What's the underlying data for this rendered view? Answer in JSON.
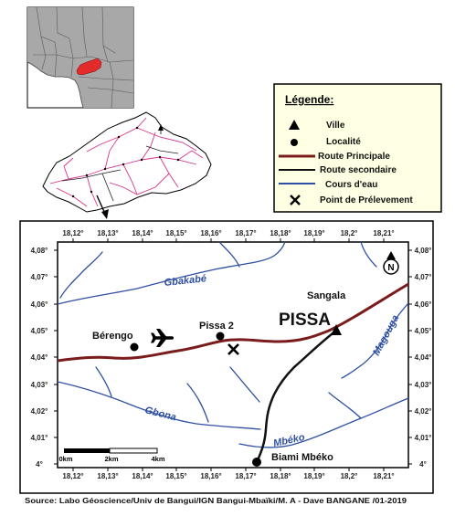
{
  "colors": {
    "main_road": "#7b1c1c",
    "secondary_road": "#111111",
    "river": "#2e4fa3",
    "car_highlight": "#e32b2b",
    "legend_bg": "#ffffe3",
    "land": "#a8a8a8",
    "car_roads": "#d6338a"
  },
  "icons": {
    "airport": "airplane-icon",
    "north": "north-arrow-icon"
  },
  "legend": {
    "title": "Légende:",
    "items": [
      {
        "symbol": "triangle",
        "label": "Ville"
      },
      {
        "symbol": "dot",
        "label": "Localité"
      },
      {
        "symbol": "main-road-line",
        "label": "Route Principale"
      },
      {
        "symbol": "secondary-road-line",
        "label": "Route secondaire"
      },
      {
        "symbol": "river-line",
        "label": "Cours d'eau"
      },
      {
        "symbol": "cross",
        "label": "Point de Prélevement"
      }
    ]
  },
  "graticule": {
    "top": [
      "18,12°",
      "18,13°",
      "18,14°",
      "18,15°",
      "18,16°",
      "18,17°",
      "18,18°",
      "18,19°",
      "18,2°",
      "18,21°"
    ],
    "bottom": [
      "18,12°",
      "18,13°",
      "18,14°",
      "18,15°",
      "18,16°",
      "18,17°",
      "18,18°",
      "18,19°",
      "18,2°",
      "18,21°"
    ],
    "left": [
      "4,08°",
      "4,07°",
      "4,06°",
      "4,05°",
      "4,04°",
      "4,03°",
      "4,02°",
      "4,01°",
      "4°"
    ],
    "right": [
      "4,08°",
      "4,07°",
      "4,06°",
      "4,05°",
      "4,04°",
      "4,03°",
      "4,02°",
      "4,01°",
      "4°"
    ]
  },
  "places": {
    "city": "PISSA",
    "sangala": "Sangala",
    "berengo": "Bérengo",
    "pissa2": "Pissa 2",
    "biami": "Biami Mbéko"
  },
  "rivers": {
    "gbakabe": "Gbakabé",
    "gbona": "Gbona",
    "mbeko": "Mbéko",
    "magouga": "Magouga"
  },
  "north_arrow": {
    "label": "N"
  },
  "scale_bar": {
    "labels": [
      "0km",
      "2km",
      "4km"
    ]
  },
  "source": "Source: Labo Géoscience/Univ de Bangui/IGN Bangui-Mbaïki/M. A - Dave BANGANE /01-2019"
}
